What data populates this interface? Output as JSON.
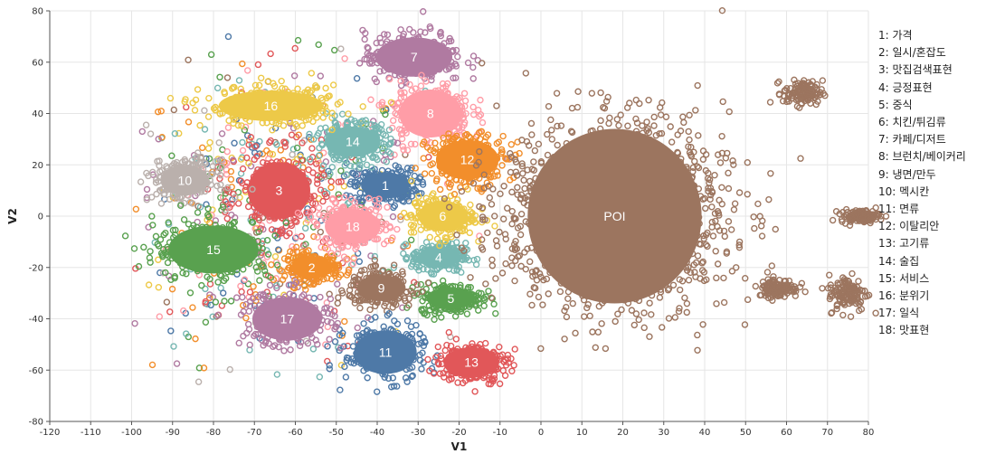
{
  "chart_data": {
    "type": "scatter",
    "title": "",
    "xlabel": "V1",
    "ylabel": "V2",
    "xlim": [
      -120,
      80
    ],
    "ylim": [
      -80,
      80
    ],
    "xticks": [
      -120,
      -110,
      -100,
      -90,
      -80,
      -70,
      -60,
      -50,
      -40,
      -30,
      -20,
      -10,
      0,
      10,
      20,
      30,
      40,
      50,
      60,
      70,
      80
    ],
    "yticks": [
      -80,
      -60,
      -40,
      -20,
      0,
      20,
      40,
      60,
      80
    ],
    "grid": true,
    "legend_position": "right",
    "legend": [
      "1: 가격",
      "2: 일시/혼잡도",
      "3: 맛집검색표현",
      "4: 긍정표현",
      "5: 중식",
      "6: 치킨/튀김류",
      "7: 카페/디저트",
      "8: 브런치/베이커리",
      "9: 냉면/만두",
      "10: 멕시칸",
      "11: 면류",
      "12: 이탈리안",
      "13: 고기류",
      "14: 술집",
      "15: 서비스",
      "16: 분위기",
      "17: 일식",
      "18: 맛표현"
    ],
    "clusters": [
      {
        "label": "1",
        "cx": -38,
        "cy": 12,
        "rx": 7,
        "ry": 6,
        "color": "#4e79a7"
      },
      {
        "label": "2",
        "cx": -56,
        "cy": -20,
        "rx": 6,
        "ry": 5,
        "color": "#f28e2b"
      },
      {
        "label": "3",
        "cx": -64,
        "cy": 10,
        "rx": 9,
        "ry": 13,
        "color": "#e15759"
      },
      {
        "label": "4",
        "cx": -25,
        "cy": -16,
        "rx": 6,
        "ry": 5,
        "color": "#76b7b2"
      },
      {
        "label": "5",
        "cx": -22,
        "cy": -32,
        "rx": 7,
        "ry": 5,
        "color": "#59a14f"
      },
      {
        "label": "6",
        "cx": -24,
        "cy": 0,
        "rx": 7,
        "ry": 7,
        "color": "#edc948"
      },
      {
        "label": "7",
        "cx": -31,
        "cy": 62,
        "rx": 11,
        "ry": 9,
        "color": "#b07aa1"
      },
      {
        "label": "8",
        "cx": -27,
        "cy": 40,
        "rx": 9,
        "ry": 11,
        "color": "#ff9da7"
      },
      {
        "label": "9",
        "cx": -39,
        "cy": -28,
        "rx": 7,
        "ry": 6,
        "color": "#9c755f"
      },
      {
        "label": "10",
        "cx": -87,
        "cy": 14,
        "rx": 7,
        "ry": 7,
        "color": "#bab0ac"
      },
      {
        "label": "11",
        "cx": -38,
        "cy": -53,
        "rx": 9,
        "ry": 10,
        "color": "#4e79a7"
      },
      {
        "label": "12",
        "cx": -18,
        "cy": 22,
        "rx": 9,
        "ry": 9,
        "color": "#f28e2b"
      },
      {
        "label": "13",
        "cx": -17,
        "cy": -57,
        "rx": 8,
        "ry": 7,
        "color": "#e15759"
      },
      {
        "label": "14",
        "cx": -46,
        "cy": 29,
        "rx": 8,
        "ry": 7,
        "color": "#76b7b2"
      },
      {
        "label": "15",
        "cx": -80,
        "cy": -13,
        "rx": 13,
        "ry": 11,
        "color": "#59a14f"
      },
      {
        "label": "16",
        "cx": -66,
        "cy": 43,
        "rx": 15,
        "ry": 7,
        "color": "#edc948"
      },
      {
        "label": "17",
        "cx": -62,
        "cy": -40,
        "rx": 10,
        "ry": 10,
        "color": "#b07aa1"
      },
      {
        "label": "18",
        "cx": -46,
        "cy": -4,
        "rx": 8,
        "ry": 8,
        "color": "#ff9da7"
      },
      {
        "label": "POI",
        "cx": 18,
        "cy": 0,
        "rx": 25,
        "ry": 40,
        "color": "#9c755f"
      }
    ]
  }
}
